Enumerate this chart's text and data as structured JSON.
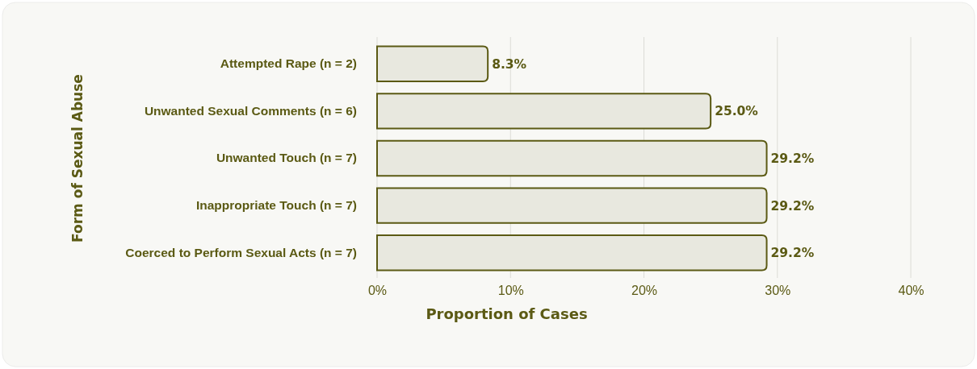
{
  "chart_data": {
    "type": "bar",
    "orientation": "horizontal",
    "xlabel": "Proportion of Cases",
    "ylabel": "Form of Sexual Abuse",
    "categories": [
      "Attempted Rape (n = 2)",
      "Unwanted Sexual Comments (n = 6)",
      "Unwanted Touch (n = 7)",
      "Inappropriate Touch (n = 7)",
      "Coerced to Perform Sexual Acts (n = 7)"
    ],
    "values": [
      8.3,
      25.0,
      29.2,
      29.2,
      29.2
    ],
    "value_labels": [
      "8.3%",
      "25.0%",
      "29.2%",
      "29.2%",
      "29.2%"
    ],
    "color": "#e8e8df",
    "xlim": [
      0,
      40
    ],
    "xticks": [
      {
        "value": 0,
        "label": "0%"
      },
      {
        "value": 10,
        "label": "10%"
      },
      {
        "value": 20,
        "label": "20%"
      },
      {
        "value": 30,
        "label": "30%"
      },
      {
        "value": 40,
        "label": "40%"
      }
    ],
    "grid": "x"
  }
}
